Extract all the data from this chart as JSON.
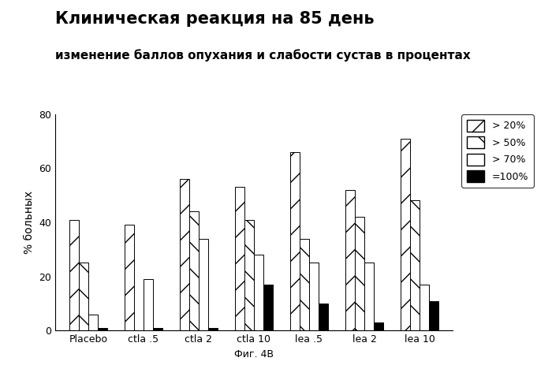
{
  "title": "Клиническая реакция на 85 день",
  "subtitle": "изменение баллов опухания и слабости сустав в процентах",
  "xlabel": "Фиг. 4B",
  "ylabel": "% больных",
  "categories": [
    "Placebo",
    "ctla .5",
    "ctla 2",
    "ctla 10",
    "lea .5",
    "lea 2",
    "lea 10"
  ],
  "series_values": {
    "gt20": [
      41,
      39,
      56,
      53,
      66,
      52,
      71
    ],
    "gt50": [
      25,
      0,
      44,
      41,
      34,
      42,
      48
    ],
    "gt70": [
      6,
      19,
      34,
      28,
      25,
      25,
      17
    ],
    "eq100": [
      1,
      1,
      1,
      17,
      10,
      3,
      11
    ]
  },
  "legend_labels": [
    "> 20%",
    "> 50%",
    "> 70%",
    "=100%"
  ],
  "ylim": [
    0,
    80
  ],
  "yticks": [
    0,
    20,
    40,
    60,
    80
  ],
  "bar_width": 0.17,
  "figsize": [
    7.0,
    4.82
  ],
  "dpi": 100,
  "background_color": "#ffffff",
  "title_fontsize": 15,
  "subtitle_fontsize": 11,
  "axis_label_fontsize": 10,
  "tick_fontsize": 9
}
